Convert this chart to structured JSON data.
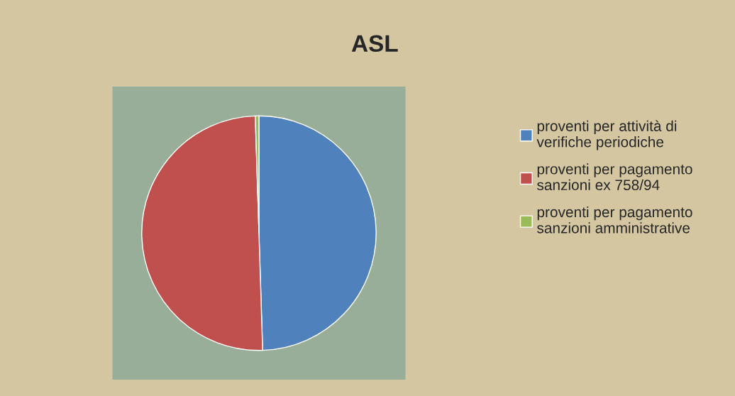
{
  "chart_data": {
    "type": "pie",
    "title": "ASL",
    "categories": [
      "proventi per attività di verifiche periodiche",
      "proventi per pagamento sanzioni ex 758/94",
      "proventi per pagamento sanzioni amministrative"
    ],
    "values": [
      49.5,
      50,
      0.5
    ],
    "colors": [
      "#4f81bd",
      "#c0504d",
      "#9bbb59"
    ],
    "legend": "right"
  }
}
